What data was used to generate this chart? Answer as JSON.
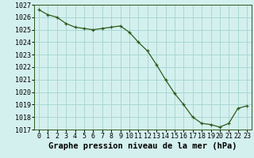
{
  "x": [
    0,
    1,
    2,
    3,
    4,
    5,
    6,
    7,
    8,
    9,
    10,
    11,
    12,
    13,
    14,
    15,
    16,
    17,
    18,
    19,
    20,
    21,
    22,
    23
  ],
  "y": [
    1026.6,
    1026.2,
    1026.0,
    1025.5,
    1025.2,
    1025.1,
    1025.0,
    1025.1,
    1025.2,
    1025.3,
    1024.8,
    1024.0,
    1023.3,
    1022.2,
    1021.0,
    1019.9,
    1019.0,
    1018.0,
    1017.5,
    1017.4,
    1017.2,
    1017.5,
    1018.7,
    1018.9
  ],
  "ylim": [
    1017,
    1027
  ],
  "xlim": [
    -0.5,
    23.5
  ],
  "yticks": [
    1017,
    1018,
    1019,
    1020,
    1021,
    1022,
    1023,
    1024,
    1025,
    1026,
    1027
  ],
  "xticks": [
    0,
    1,
    2,
    3,
    4,
    5,
    6,
    7,
    8,
    9,
    10,
    11,
    12,
    13,
    14,
    15,
    16,
    17,
    18,
    19,
    20,
    21,
    22,
    23
  ],
  "xlabel": "Graphe pression niveau de la mer (hPa)",
  "line_color": "#2d5a1b",
  "marker_color": "#2d5a1b",
  "bg_color": "#d4f0ee",
  "grid_color": "#a8d8d4",
  "tick_fontsize": 6.0,
  "xlabel_fontsize": 7.5,
  "xlabel_bold": true
}
